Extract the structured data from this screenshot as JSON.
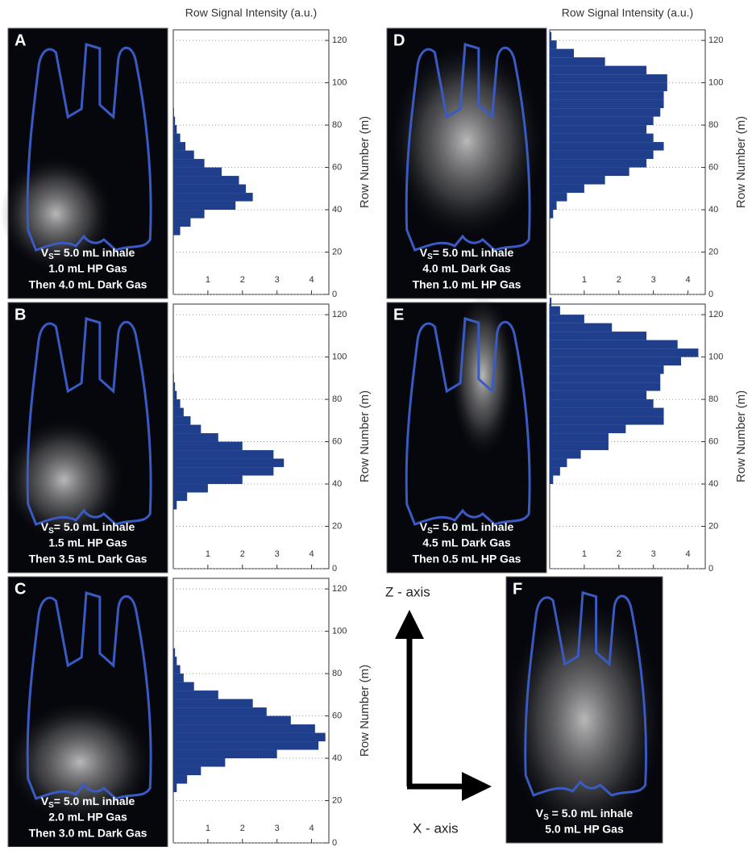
{
  "chart_data": [
    {
      "type": "bar",
      "orientation": "horizontal",
      "panel": "A",
      "formula": [
        "V",
        "S",
        "= 5.0 mL inhale"
      ],
      "caption": [
        "1.0 mL HP Gas",
        "Then 4.0 mL Dark Gas"
      ],
      "xlabel": "Row Signal Intensity (a.u.)",
      "ylabel": "Row Number (m)",
      "color": "#1f3f8c",
      "xlim": [
        0,
        4.5
      ],
      "xticks": [
        1,
        2,
        3,
        4
      ],
      "ylim": [
        0,
        125
      ],
      "yticks": [
        0,
        20,
        40,
        60,
        80,
        100,
        120
      ],
      "grid": true,
      "y": [
        28,
        32,
        36,
        40,
        44,
        48,
        52,
        56,
        60,
        64,
        68,
        72,
        76,
        80,
        84
      ],
      "values": [
        0.2,
        0.5,
        0.9,
        1.8,
        2.3,
        2.1,
        1.9,
        1.4,
        0.9,
        0.6,
        0.35,
        0.2,
        0.1,
        0.05,
        0.02
      ]
    },
    {
      "type": "bar",
      "orientation": "horizontal",
      "panel": "B",
      "formula": [
        "V",
        "S",
        "= 5.0 mL inhale"
      ],
      "caption": [
        "1.5 mL HP Gas",
        "Then 3.5 mL Dark Gas"
      ],
      "ylabel": "Row Number (m)",
      "color": "#1f3f8c",
      "xlim": [
        0,
        4.5
      ],
      "xticks": [
        1,
        2,
        3,
        4
      ],
      "ylim": [
        0,
        125
      ],
      "yticks": [
        0,
        20,
        40,
        60,
        80,
        100,
        120
      ],
      "grid": true,
      "y": [
        28,
        32,
        36,
        40,
        44,
        48,
        52,
        56,
        60,
        64,
        68,
        72,
        76,
        80,
        84,
        88
      ],
      "values": [
        0.1,
        0.4,
        1.0,
        2.0,
        2.9,
        3.2,
        2.9,
        2.0,
        1.3,
        0.8,
        0.5,
        0.3,
        0.2,
        0.1,
        0.05,
        0.02
      ]
    },
    {
      "type": "bar",
      "orientation": "horizontal",
      "panel": "C",
      "formula": [
        "V",
        "S",
        "= 5.0 mL inhale"
      ],
      "caption": [
        "2.0 mL HP Gas",
        "Then 3.0 mL Dark Gas"
      ],
      "ylabel": "Row Number (m)",
      "color": "#1f3f8c",
      "xlim": [
        0,
        4.5
      ],
      "xticks": [
        1,
        2,
        3,
        4
      ],
      "ylim": [
        0,
        125
      ],
      "yticks": [
        0,
        20,
        40,
        60,
        80,
        100,
        120
      ],
      "grid": true,
      "y": [
        24,
        28,
        32,
        36,
        40,
        44,
        48,
        52,
        56,
        60,
        64,
        68,
        72,
        76,
        80,
        84,
        88
      ],
      "values": [
        0.1,
        0.4,
        0.8,
        1.5,
        3.0,
        4.2,
        4.4,
        4.1,
        3.4,
        2.7,
        2.3,
        1.3,
        0.6,
        0.3,
        0.2,
        0.1,
        0.05
      ]
    },
    {
      "type": "bar",
      "orientation": "horizontal",
      "panel": "D",
      "formula": [
        "V",
        "S",
        "= 5.0 mL inhale"
      ],
      "caption": [
        "4.0 mL Dark Gas",
        "Then 1.0 mL HP Gas"
      ],
      "xlabel": "Row Signal Intensity (a.u.)",
      "ylabel": "Row Number (m)",
      "color": "#1f3f8c",
      "xlim": [
        0,
        4.5
      ],
      "xticks": [
        1,
        2,
        3,
        4
      ],
      "ylim": [
        0,
        125
      ],
      "yticks": [
        0,
        20,
        40,
        60,
        80,
        100,
        120
      ],
      "grid": true,
      "y": [
        36,
        40,
        44,
        48,
        52,
        56,
        60,
        64,
        68,
        72,
        76,
        80,
        84,
        88,
        92,
        96,
        100,
        104,
        108,
        112,
        116,
        120
      ],
      "values": [
        0.1,
        0.2,
        0.5,
        1.0,
        1.6,
        2.3,
        2.8,
        3.0,
        3.3,
        3.0,
        2.8,
        3.0,
        3.2,
        3.3,
        3.3,
        3.4,
        3.4,
        2.8,
        1.6,
        0.7,
        0.2,
        0.05
      ]
    },
    {
      "type": "bar",
      "orientation": "horizontal",
      "panel": "E",
      "formula": [
        "V",
        "S",
        "= 5.0 mL inhale"
      ],
      "caption": [
        "4.5 mL Dark Gas",
        "Then 0.5 mL HP Gas"
      ],
      "ylabel": "Row Number (m)",
      "color": "#1f3f8c",
      "xlim": [
        0,
        4.5
      ],
      "xticks": [
        1,
        2,
        3,
        4
      ],
      "ylim": [
        0,
        125
      ],
      "yticks": [
        0,
        20,
        40,
        60,
        80,
        100,
        120
      ],
      "grid": true,
      "y": [
        40,
        44,
        48,
        52,
        56,
        60,
        64,
        68,
        72,
        76,
        80,
        84,
        88,
        92,
        96,
        100,
        104,
        108,
        112,
        116,
        120,
        124
      ],
      "values": [
        0.1,
        0.3,
        0.5,
        0.9,
        1.7,
        1.7,
        2.2,
        3.3,
        3.3,
        3.0,
        2.8,
        3.2,
        3.2,
        3.3,
        3.8,
        4.3,
        3.7,
        2.8,
        1.8,
        1.0,
        0.3,
        0.05
      ]
    }
  ],
  "panel_f": {
    "panel": "F",
    "formula": [
      "V",
      "S",
      " = 5.0 mL inhale"
    ],
    "caption": [
      "5.0 mL HP Gas"
    ]
  },
  "axes_diagram": {
    "z": "Z - axis",
    "x": "X - axis"
  }
}
